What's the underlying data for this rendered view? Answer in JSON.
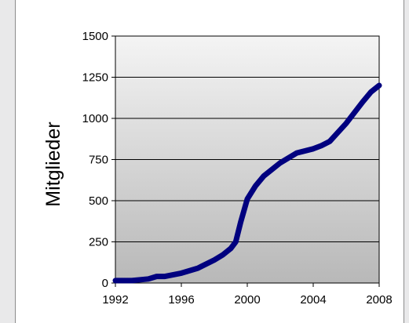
{
  "chart_data": {
    "type": "line",
    "title": "",
    "xlabel": "",
    "ylabel": "Mitglieder",
    "xlim": [
      1992,
      2008
    ],
    "ylim": [
      0,
      1500
    ],
    "x_ticks": [
      "1992",
      "1996",
      "2000",
      "2004",
      "2008"
    ],
    "y_ticks": [
      "0",
      "250",
      "500",
      "750",
      "1000",
      "1250",
      "1500"
    ],
    "grid": true,
    "legend": "none",
    "series": [
      {
        "color": "#00007f",
        "x": [
          1992,
          1993,
          1994,
          1994.5,
          1995,
          1996,
          1997,
          1998,
          1998.5,
          1999,
          1999.3,
          1999.6,
          2000,
          2000.5,
          2001,
          2002,
          2003,
          2004,
          2004.5,
          2005,
          2005.5,
          2006,
          2007,
          2007.5,
          2008
        ],
        "y": [
          15,
          15,
          25,
          40,
          40,
          60,
          90,
          140,
          170,
          210,
          250,
          370,
          510,
          590,
          650,
          730,
          790,
          815,
          835,
          860,
          915,
          970,
          1100,
          1160,
          1200
        ]
      }
    ]
  },
  "colors": {
    "plot_top": "#f4f4f4",
    "plot_bottom": "#b8b8b8",
    "line": "#00007f",
    "panel_border": "#8c8c8c",
    "background": "#e9e9ea"
  }
}
